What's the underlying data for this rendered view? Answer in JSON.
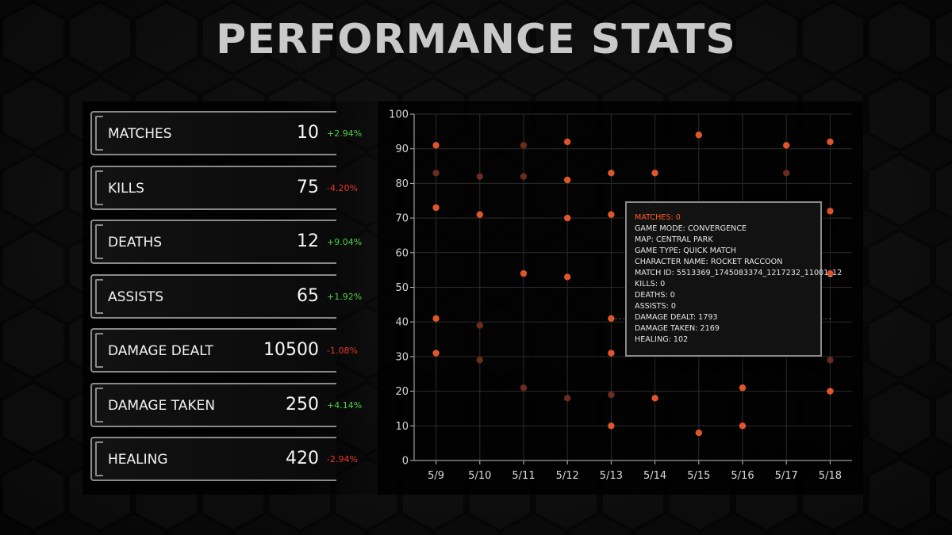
{
  "title": "PERFORMANCE STATS",
  "stats": [
    {
      "label": "MATCHES",
      "value": "10",
      "change": "+2.94%",
      "trend": "up"
    },
    {
      "label": "KILLS",
      "value": "75",
      "change": "-4.20%",
      "trend": "down"
    },
    {
      "label": "DEATHS",
      "value": "12",
      "change": "+9.04%",
      "trend": "up"
    },
    {
      "label": "ASSISTS",
      "value": "65",
      "change": "+1.92%",
      "trend": "up"
    },
    {
      "label": "DAMAGE DEALT",
      "value": "10500",
      "change": "-1.08%",
      "trend": "down"
    },
    {
      "label": "DAMAGE TAKEN",
      "value": "250",
      "change": "+4.14%",
      "trend": "up"
    },
    {
      "label": "HEALING",
      "value": "420",
      "change": "-2.94%",
      "trend": "down"
    }
  ],
  "colors": {
    "up": "#4fd14a",
    "down": "#e8372a",
    "point": "#e0562c",
    "point_dim": "#6a2c1c",
    "accent": "#ff5a24"
  },
  "tooltip": {
    "header": "MATCHES: 0",
    "lines": [
      "GAME MODE: CONVERGENCE",
      "MAP: CENTRAL PARK",
      "GAME TYPE: QUICK MATCH",
      "CHARACTER NAME: ROCKET RACCOON",
      "MATCH ID: 5513369_1745083374_1217232_11001_12",
      "KILLS: 0",
      "DEATHS: 0",
      "ASSISTS: 0",
      "DAMAGE DEALT: 1793",
      "DAMAGE TAKEN: 2169",
      "HEALING: 102"
    ]
  },
  "chart_data": {
    "type": "scatter",
    "categories": [
      "5/9",
      "5/10",
      "5/11",
      "5/12",
      "5/13",
      "5/14",
      "5/15",
      "5/16",
      "5/17",
      "5/18"
    ],
    "ylim": [
      0,
      100
    ],
    "yticks": [
      0,
      10,
      20,
      30,
      40,
      50,
      60,
      70,
      80,
      90,
      100
    ],
    "grid": true,
    "points": [
      {
        "x": "5/9",
        "y": 91,
        "dim": false
      },
      {
        "x": "5/9",
        "y": 83,
        "dim": true
      },
      {
        "x": "5/9",
        "y": 73,
        "dim": false
      },
      {
        "x": "5/9",
        "y": 41,
        "dim": false
      },
      {
        "x": "5/9",
        "y": 31,
        "dim": false
      },
      {
        "x": "5/10",
        "y": 82,
        "dim": true
      },
      {
        "x": "5/10",
        "y": 71,
        "dim": false
      },
      {
        "x": "5/10",
        "y": 39,
        "dim": true
      },
      {
        "x": "5/10",
        "y": 29,
        "dim": true
      },
      {
        "x": "5/11",
        "y": 91,
        "dim": true
      },
      {
        "x": "5/11",
        "y": 82,
        "dim": true
      },
      {
        "x": "5/11",
        "y": 54,
        "dim": false
      },
      {
        "x": "5/11",
        "y": 21,
        "dim": true
      },
      {
        "x": "5/12",
        "y": 92,
        "dim": false
      },
      {
        "x": "5/12",
        "y": 81,
        "dim": false
      },
      {
        "x": "5/12",
        "y": 70,
        "dim": false
      },
      {
        "x": "5/12",
        "y": 53,
        "dim": false
      },
      {
        "x": "5/12",
        "y": 18,
        "dim": true
      },
      {
        "x": "5/13",
        "y": 83,
        "dim": false
      },
      {
        "x": "5/13",
        "y": 71,
        "dim": false
      },
      {
        "x": "5/13",
        "y": 41,
        "dim": false
      },
      {
        "x": "5/13",
        "y": 31,
        "dim": false
      },
      {
        "x": "5/13",
        "y": 19,
        "dim": true
      },
      {
        "x": "5/13",
        "y": 10,
        "dim": false
      },
      {
        "x": "5/14",
        "y": 83,
        "dim": false
      },
      {
        "x": "5/14",
        "y": 18,
        "dim": false
      },
      {
        "x": "5/15",
        "y": 94,
        "dim": false
      },
      {
        "x": "5/15",
        "y": 8,
        "dim": false
      },
      {
        "x": "5/16",
        "y": 21,
        "dim": false
      },
      {
        "x": "5/16",
        "y": 10,
        "dim": false
      },
      {
        "x": "5/17",
        "y": 91,
        "dim": false
      },
      {
        "x": "5/17",
        "y": 83,
        "dim": true
      },
      {
        "x": "5/18",
        "y": 92,
        "dim": false
      },
      {
        "x": "5/18",
        "y": 72,
        "dim": false
      },
      {
        "x": "5/18",
        "y": 54,
        "dim": false
      },
      {
        "x": "5/18",
        "y": 29,
        "dim": true
      },
      {
        "x": "5/18",
        "y": 20,
        "dim": false
      }
    ]
  }
}
